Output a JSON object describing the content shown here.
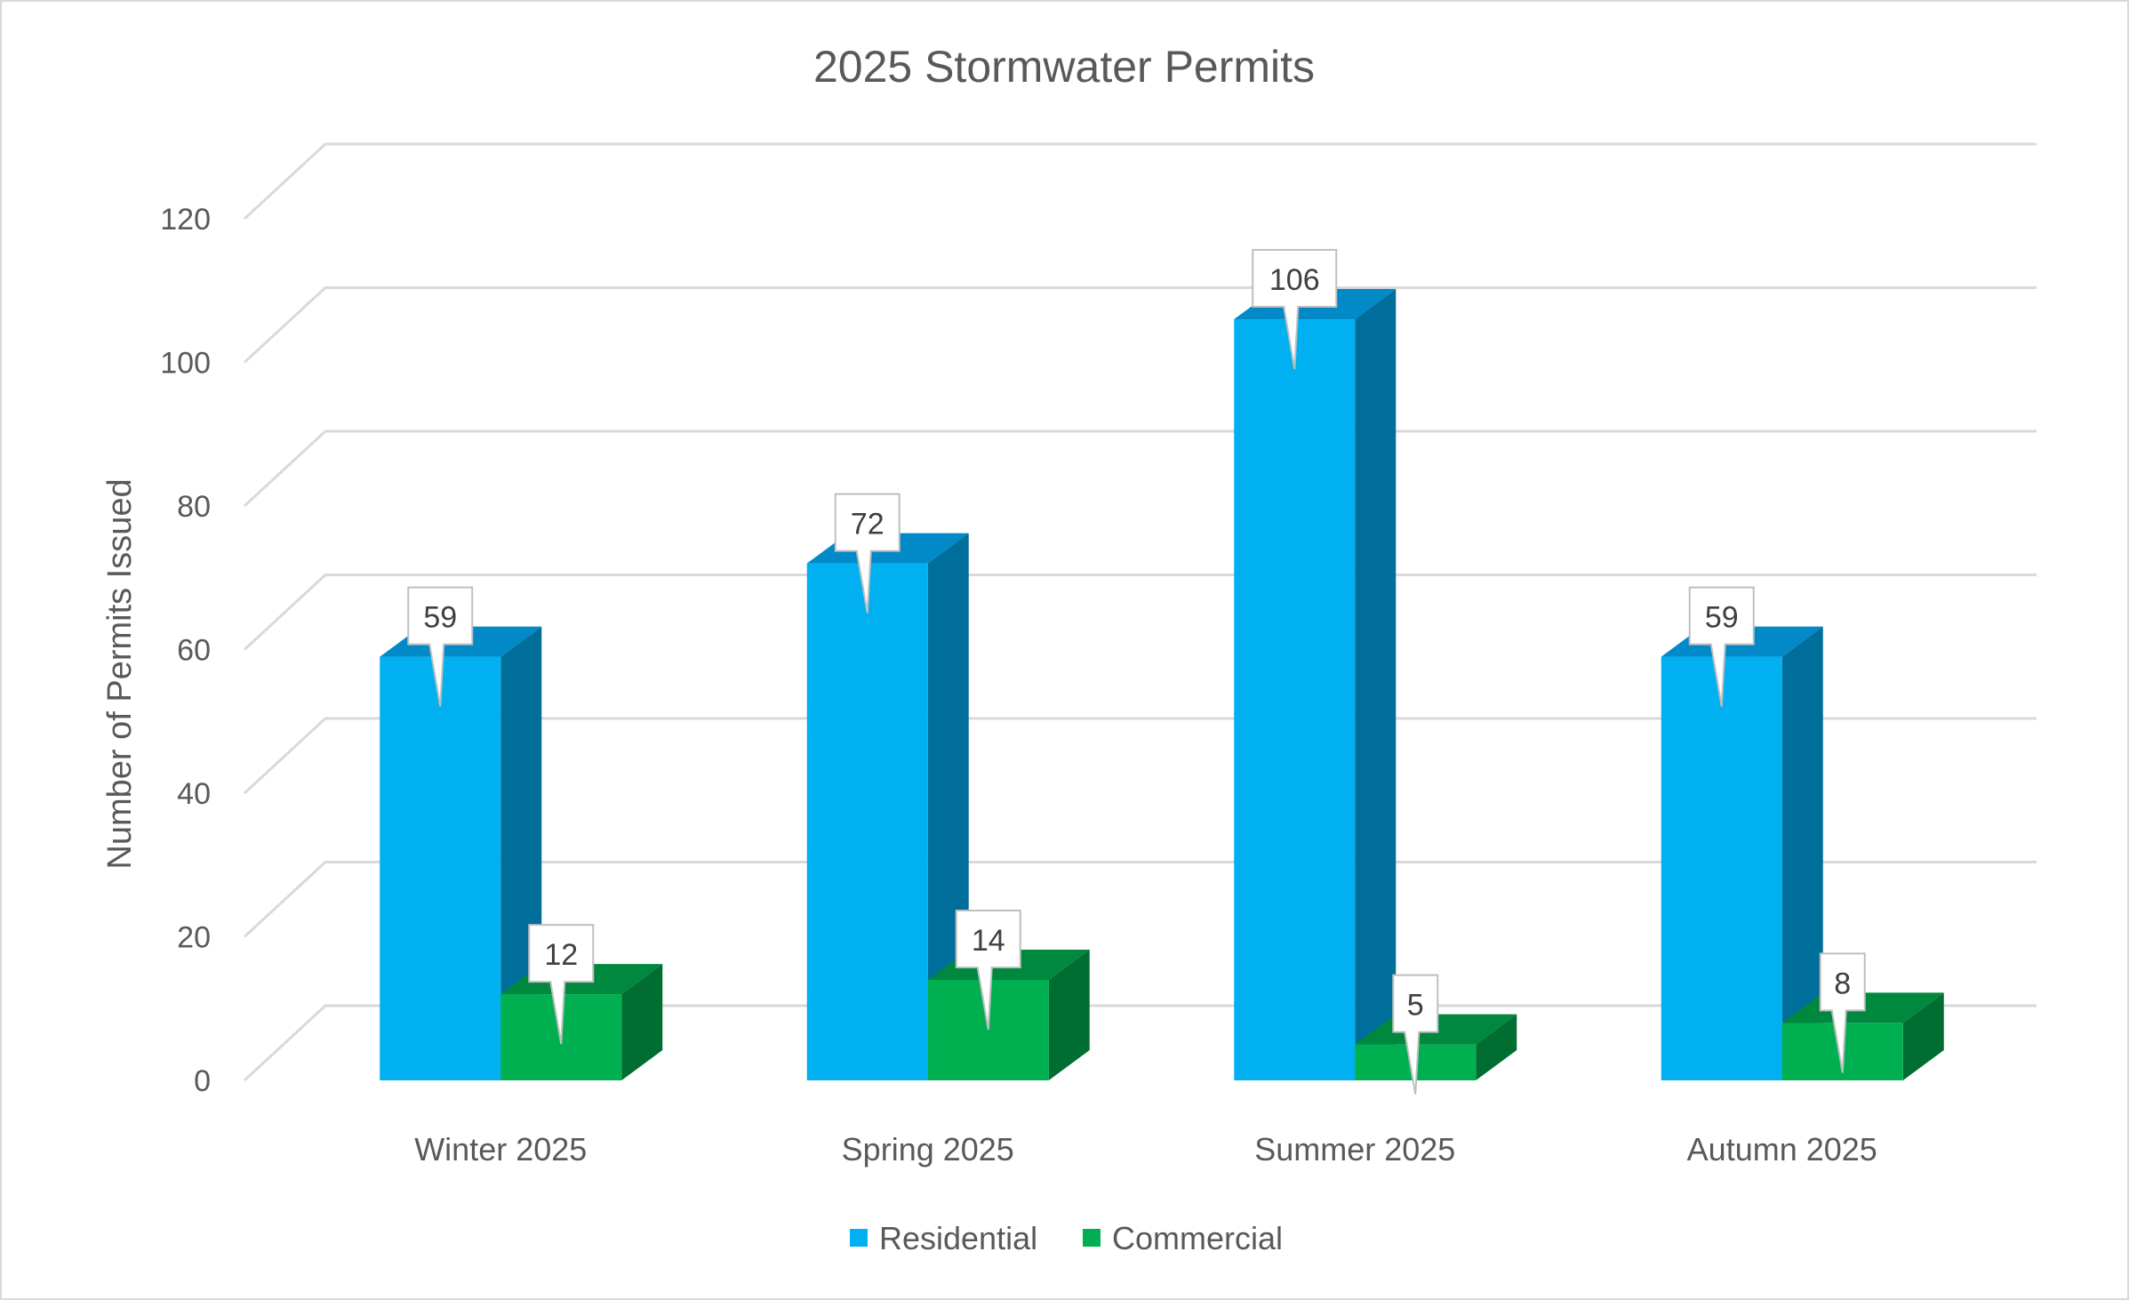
{
  "chart_data": {
    "type": "bar",
    "style": "3d-clustered-column",
    "title": "2025 Stormwater Permits",
    "xlabel": "",
    "ylabel": "Number of Permits Issued",
    "categories": [
      "Winter 2025",
      "Spring 2025",
      "Summer 2025",
      "Autumn 2025"
    ],
    "series": [
      {
        "name": "Residential",
        "values": [
          59,
          72,
          106,
          59
        ],
        "color": "#00B0F0",
        "color_top": "#0189C8",
        "color_side": "#006E9A"
      },
      {
        "name": "Commercial",
        "values": [
          12,
          14,
          5,
          8
        ],
        "color": "#00B050",
        "color_top": "#00883E",
        "color_side": "#006E31"
      }
    ],
    "ylim": [
      0,
      120
    ],
    "yticks": [
      0,
      20,
      40,
      60,
      80,
      100,
      120
    ],
    "grid": true,
    "data_labels": "callout",
    "legend_position": "bottom"
  }
}
